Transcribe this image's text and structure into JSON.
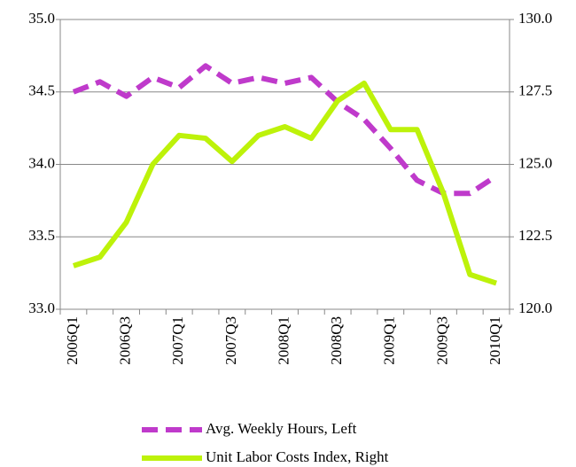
{
  "chart_data": {
    "type": "line",
    "categories": [
      "2006Q1",
      null,
      "2006Q3",
      null,
      "2007Q1",
      null,
      "2007Q3",
      null,
      "2008Q1",
      null,
      "2008Q3",
      null,
      "2009Q1",
      null,
      "2009Q3",
      null,
      "2010Q1"
    ],
    "series": [
      {
        "name": "Avg. Weekly Hours, Left",
        "color": "#bf3acb",
        "line_style": "dashed",
        "axis": "y",
        "values": [
          34.5,
          34.57,
          34.47,
          34.6,
          34.53,
          34.68,
          34.56,
          34.6,
          34.56,
          34.6,
          34.43,
          34.31,
          34.11,
          33.89,
          33.8,
          33.8,
          33.92
        ]
      },
      {
        "name": "Unit Labor Costs Index, Right",
        "color": "#bdf20a",
        "line_style": "solid",
        "axis": "y2",
        "values": [
          121.5,
          121.8,
          123.0,
          125.0,
          126.0,
          125.9,
          125.1,
          126.0,
          126.3,
          125.9,
          127.2,
          127.8,
          126.2,
          126.2,
          124.0,
          121.2,
          120.9
        ]
      }
    ],
    "ylim": [
      33.0,
      35.0
    ],
    "yticks": [
      {
        "value": 33.0,
        "label": "33.0"
      },
      {
        "value": 33.5,
        "label": "33.5"
      },
      {
        "value": 34.0,
        "label": "34.0"
      },
      {
        "value": 34.5,
        "label": "34.5"
      },
      {
        "value": 35.0,
        "label": "35.0"
      }
    ],
    "y2lim": [
      120.0,
      130.0
    ],
    "y2ticks": [
      {
        "value": 120.0,
        "label": "120.0"
      },
      {
        "value": 122.5,
        "label": "122.5"
      },
      {
        "value": 125.0,
        "label": "125.0"
      },
      {
        "value": 127.5,
        "label": "127.5"
      },
      {
        "value": 130.0,
        "label": "130.0"
      }
    ],
    "grid": true,
    "legend": "bottom"
  }
}
